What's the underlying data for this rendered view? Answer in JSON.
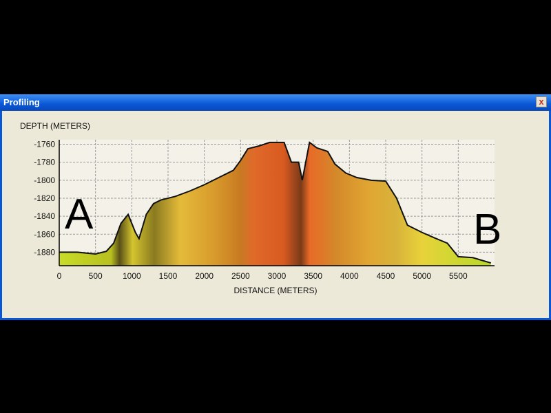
{
  "window": {
    "title": "Profiling",
    "close_label": "x"
  },
  "chart_data": {
    "type": "area",
    "xlabel": "DISTANCE (METERS)",
    "ylabel": "DEPTH (METERS)",
    "xlim": [
      0,
      6000
    ],
    "ylim": [
      -1895,
      -1755
    ],
    "xticks": [
      0,
      500,
      1000,
      1500,
      2000,
      2500,
      3000,
      3500,
      4000,
      4500,
      5000,
      5500
    ],
    "yticks": [
      -1760,
      -1780,
      -1800,
      -1820,
      -1840,
      -1860,
      -1880
    ],
    "grid": true,
    "markers": [
      "A",
      "B"
    ],
    "x": [
      0,
      250,
      500,
      650,
      750,
      850,
      950,
      1050,
      1100,
      1200,
      1300,
      1400,
      1500,
      1600,
      1800,
      2000,
      2200,
      2400,
      2500,
      2600,
      2750,
      2900,
      3100,
      3200,
      3300,
      3350,
      3450,
      3550,
      3700,
      3800,
      3950,
      4100,
      4300,
      4500,
      4650,
      4800,
      5000,
      5200,
      5350,
      5500,
      5700,
      5950
    ],
    "y": [
      -1880,
      -1880,
      -1882,
      -1879,
      -1870,
      -1848,
      -1838,
      -1858,
      -1865,
      -1838,
      -1826,
      -1822,
      -1820,
      -1818,
      -1812,
      -1805,
      -1797,
      -1789,
      -1778,
      -1765,
      -1762,
      -1758,
      -1758,
      -1780,
      -1780,
      -1800,
      -1758,
      -1764,
      -1768,
      -1782,
      -1792,
      -1797,
      -1800,
      -1801,
      -1820,
      -1850,
      -1858,
      -1865,
      -1870,
      -1885,
      -1886,
      -1892
    ]
  }
}
